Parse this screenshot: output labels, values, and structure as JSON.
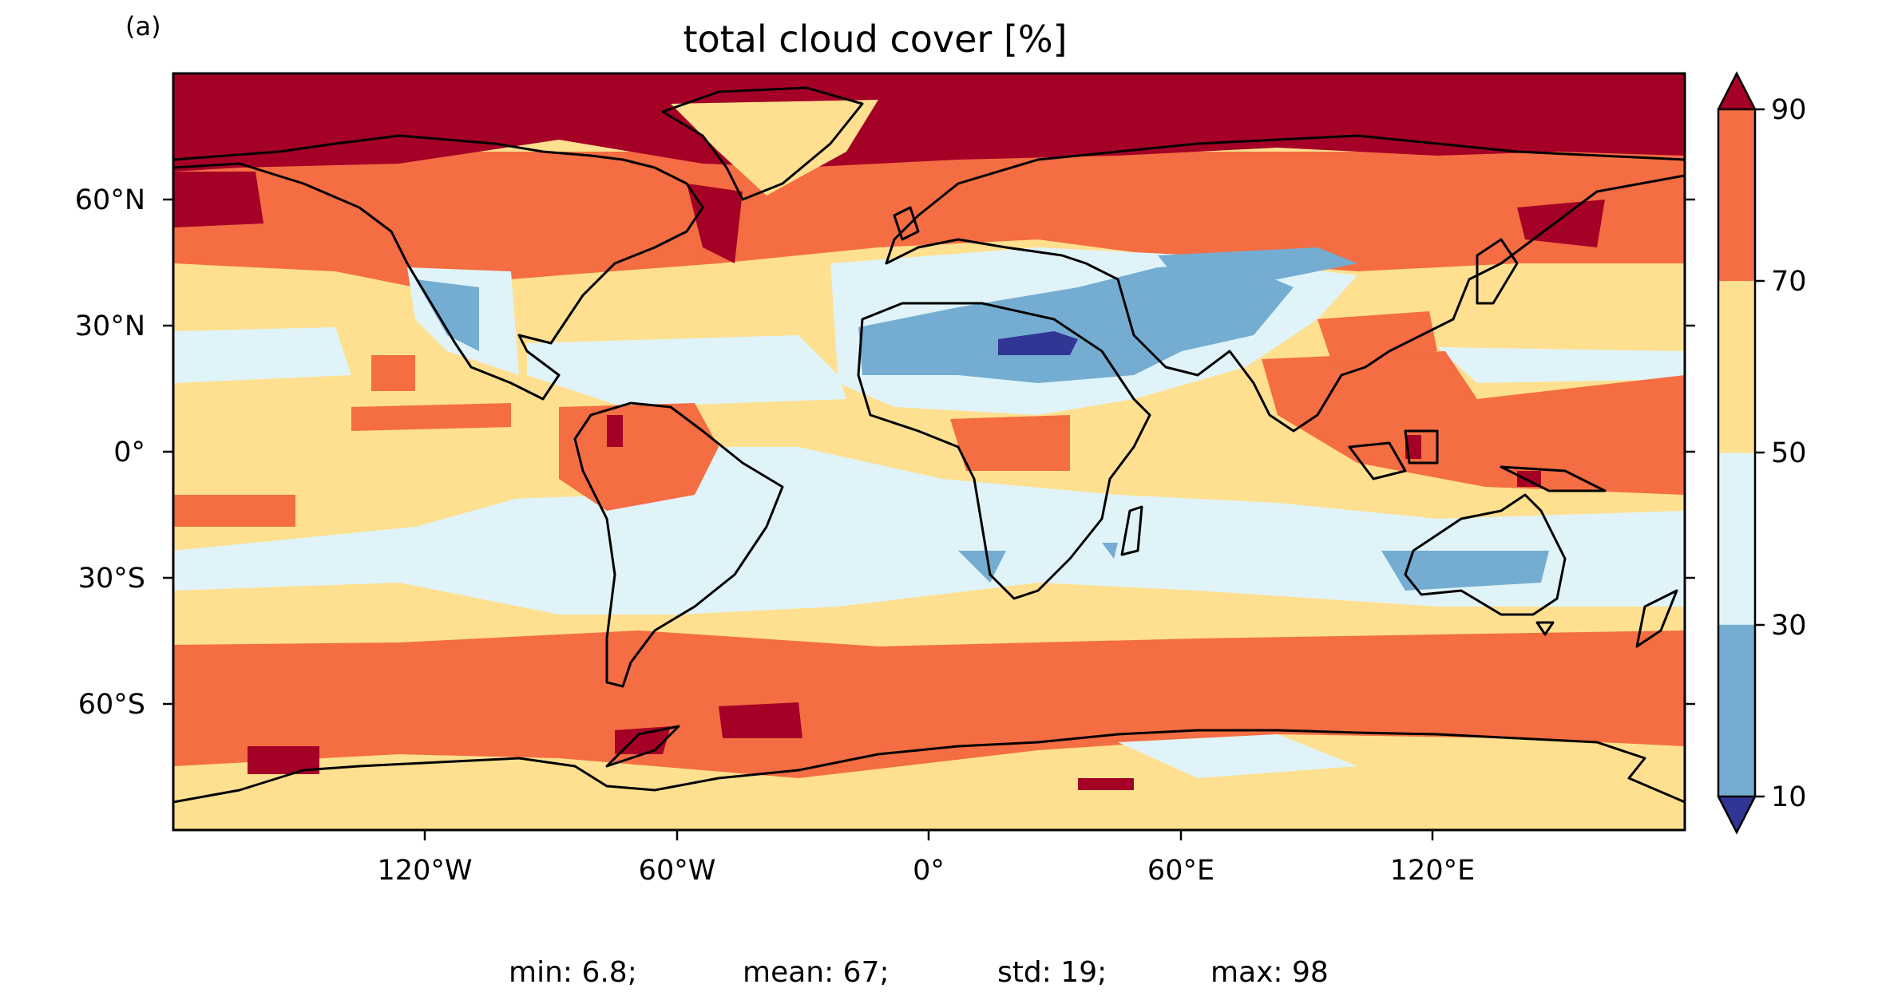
{
  "panel_label": "(a)",
  "title": "total cloud cover [%]",
  "colorbar": {
    "ticks": [
      "10",
      "30",
      "50",
      "70",
      "90"
    ],
    "bins": [
      {
        "from": 90,
        "to": 100,
        "color": "#a50026",
        "extend": "max"
      },
      {
        "from": 70,
        "to": 90,
        "color": "#f46d43"
      },
      {
        "from": 50,
        "to": 70,
        "color": "#fee090"
      },
      {
        "from": 30,
        "to": 50,
        "color": "#e0f3f8"
      },
      {
        "from": 10,
        "to": 30,
        "color": "#74add1"
      },
      {
        "from": 0,
        "to": 10,
        "color": "#313695",
        "extend": "min"
      }
    ]
  },
  "axes": {
    "lat_labels": [
      "60°N",
      "30°N",
      "0°",
      "30°S",
      "60°S"
    ],
    "lon_labels": [
      "120°W",
      "60°W",
      "0°",
      "60°E",
      "120°E"
    ]
  },
  "stats": {
    "min": "min: 6.8;",
    "mean": "mean: 67;",
    "std": "std: 19;",
    "max": "max: 98"
  },
  "chart_data": {
    "type": "heatmap",
    "title": "total cloud cover [%]",
    "projection": "PlateCarree",
    "lon_range": [
      -180,
      180
    ],
    "lat_range": [
      -90,
      90
    ],
    "levels": [
      10,
      30,
      50,
      70,
      90
    ],
    "extend": "both",
    "summary": {
      "min": 6.8,
      "mean": 67,
      "std": 19,
      "max": 98
    }
  }
}
